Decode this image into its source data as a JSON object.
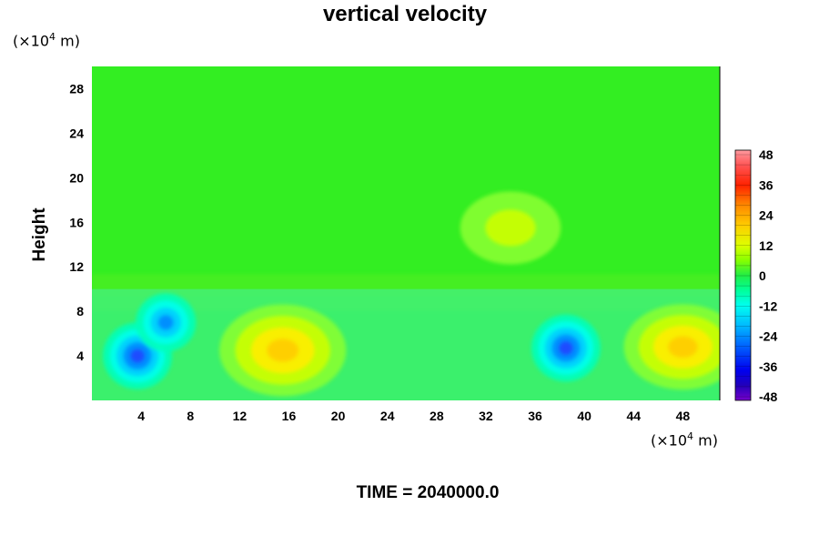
{
  "chart_data": {
    "type": "heatmap",
    "title": "vertical velocity",
    "ylabel": "Height",
    "xlabel": "",
    "x_unit": "(×10",
    "y_unit": "(×10",
    "unit_exp": "4",
    "unit_tail": " m)",
    "xlim": [
      0,
      51
    ],
    "ylim": [
      0,
      30
    ],
    "x_ticks": [
      4,
      8,
      12,
      16,
      20,
      24,
      28,
      32,
      36,
      40,
      44,
      48
    ],
    "y_ticks": [
      4,
      8,
      12,
      16,
      20,
      24,
      28
    ],
    "colorbar": {
      "range": [
        -48,
        48
      ],
      "ticks": [
        48,
        36,
        24,
        12,
        0,
        -12,
        -24,
        -36,
        -48
      ]
    },
    "features": [
      {
        "kind": "updraft",
        "x": 15.5,
        "y": 4.5,
        "peak": 24
      },
      {
        "kind": "updraft",
        "x": 48,
        "y": 4.8,
        "peak": 20
      },
      {
        "kind": "downdraft",
        "x": 3.7,
        "y": 4,
        "peak": -30
      },
      {
        "kind": "downdraft",
        "x": 38.5,
        "y": 4.7,
        "peak": -28
      },
      {
        "kind": "downdraft",
        "x": 6,
        "y": 7,
        "peak": -20
      },
      {
        "kind": "updraft",
        "x": 34,
        "y": 15.5,
        "peak": 12
      }
    ]
  },
  "footer": {
    "time_label": "TIME = 2040000.0"
  }
}
